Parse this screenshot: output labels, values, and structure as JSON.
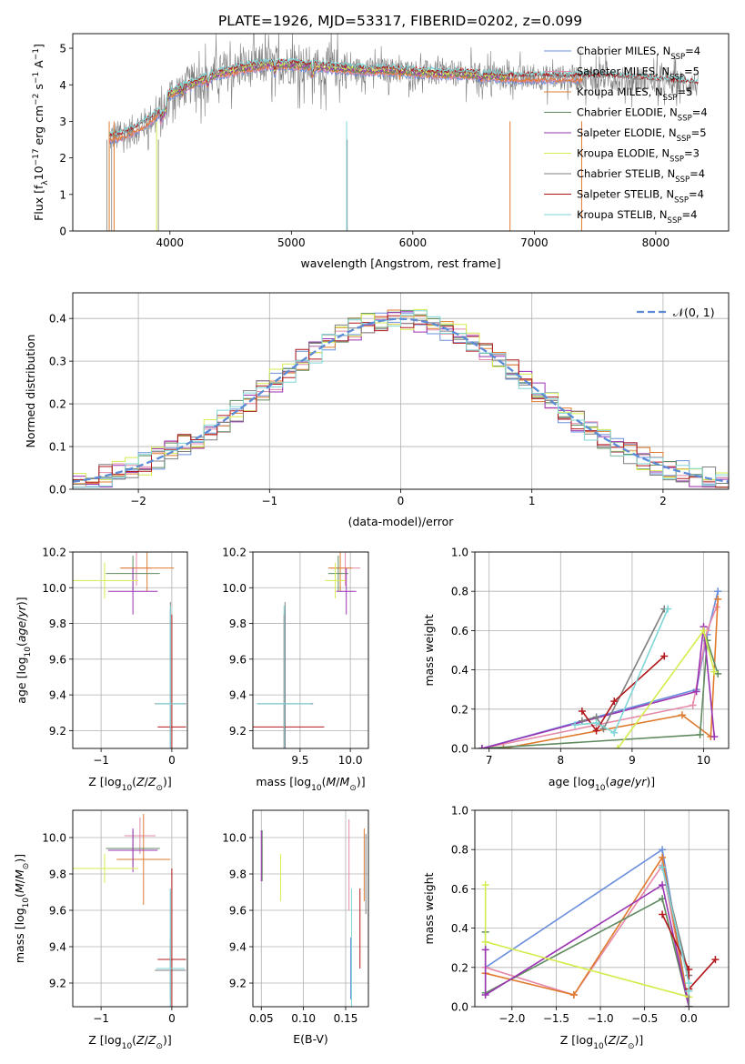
{
  "figure_title": "PLATE=1926, MJD=53317, FIBERID=0202, z=0.099",
  "colors": {
    "chabrier_miles": "#6a8fdc",
    "salpeter_miles": "#e58aa8",
    "kroupa_miles": "#e07b2e",
    "chabrier_elodie": "#5e8a5e",
    "salpeter_elodie": "#9b34b3",
    "kroupa_elodie": "#d5ec4e",
    "chabrier_stelib": "#7f7f7f",
    "salpeter_stelib": "#b2181b",
    "kroupa_stelib": "#7fd6d6",
    "normal_curve": "#5b8bd6"
  },
  "chart_data": [
    {
      "id": "spectrum",
      "type": "line",
      "xlabel": "wavelength [Angstrom, rest frame]",
      "ylabel": "Flux [fλ10⁻¹⁷ erg cm⁻² s⁻¹ A⁻¹]",
      "xlim": [
        3200,
        8600
      ],
      "ylim": [
        0,
        5.4
      ],
      "xticks": [
        4000,
        5000,
        6000,
        7000,
        8000
      ],
      "yticks": [
        0,
        1,
        2,
        3,
        4,
        5
      ],
      "legend_position": "right",
      "legend": [
        {
          "key": "chabrier_miles",
          "label": "Chabrier MILES, N_SSP=4"
        },
        {
          "key": "salpeter_miles",
          "label": "Salpeter MILES, N_SSP=5"
        },
        {
          "key": "kroupa_miles",
          "label": "Kroupa MILES, N_SSP=5"
        },
        {
          "key": "chabrier_elodie",
          "label": "Chabrier ELODIE, N_SSP=4"
        },
        {
          "key": "salpeter_elodie",
          "label": "Salpeter ELODIE, N_SSP=5"
        },
        {
          "key": "kroupa_elodie",
          "label": "Kroupa ELODIE, N_SSP=3"
        },
        {
          "key": "chabrier_stelib",
          "label": "Chabrier STELIB, N_SSP=4"
        },
        {
          "key": "salpeter_stelib",
          "label": "Salpeter STELIB, N_SSP=4"
        },
        {
          "key": "kroupa_stelib",
          "label": "Kroupa STELIB, N_SSP=4"
        }
      ],
      "continuum": [
        [
          3500,
          2.55
        ],
        [
          3600,
          2.6
        ],
        [
          3700,
          2.75
        ],
        [
          3800,
          2.95
        ],
        [
          3900,
          3.2
        ],
        [
          4000,
          3.75
        ],
        [
          4200,
          4.05
        ],
        [
          4400,
          4.3
        ],
        [
          4600,
          4.45
        ],
        [
          4800,
          4.55
        ],
        [
          5000,
          4.55
        ],
        [
          5200,
          4.5
        ],
        [
          5400,
          4.45
        ],
        [
          5600,
          4.4
        ],
        [
          5800,
          4.4
        ],
        [
          6000,
          4.35
        ],
        [
          6200,
          4.3
        ],
        [
          6400,
          4.3
        ],
        [
          6600,
          4.25
        ],
        [
          6800,
          4.2
        ],
        [
          7000,
          4.2
        ],
        [
          7200,
          4.2
        ],
        [
          7400,
          4.2
        ],
        [
          7600,
          4.2
        ],
        [
          7800,
          4.15
        ],
        [
          8000,
          4.1
        ],
        [
          8200,
          4.05
        ],
        [
          8350,
          4.0
        ]
      ],
      "model_ranges": {
        "chabrier_miles": [
          3500,
          7400
        ],
        "salpeter_miles": [
          3500,
          7400
        ],
        "kroupa_miles": [
          3500,
          7400
        ],
        "chabrier_elodie": [
          3900,
          6800
        ],
        "salpeter_elodie": [
          3900,
          6800
        ],
        "kroupa_elodie": [
          3900,
          6800
        ],
        "chabrier_stelib": [
          3500,
          8350
        ],
        "salpeter_stelib": [
          3500,
          8350
        ],
        "kroupa_stelib": [
          3500,
          8350
        ]
      }
    },
    {
      "id": "residual_histogram",
      "type": "bar",
      "xlabel": "(data-model)/error",
      "ylabel": "Normed distribution",
      "xlim": [
        -2.5,
        2.5
      ],
      "ylim": [
        0,
        0.46
      ],
      "xticks": [
        -2,
        -1,
        0,
        1,
        2
      ],
      "yticks": [
        0.0,
        0.1,
        0.2,
        0.3,
        0.4
      ],
      "grid": true,
      "legend_position": "top-right",
      "curve_label": "𝒩(0, 1)",
      "bin_width": 0.1
    },
    {
      "id": "age_vs_Z",
      "type": "scatter",
      "xlabel": "Z [log10(Z/Z⊙)]",
      "ylabel": "age  [log10(age/yr)]",
      "xlim": [
        -1.4,
        0.22
      ],
      "ylim": [
        9.1,
        10.2
      ],
      "xticks": [
        -1,
        0
      ],
      "yticks": [
        9.2,
        9.4,
        9.6,
        9.8,
        10.0,
        10.2
      ],
      "grid": true,
      "points": [
        {
          "key": "chabrier_miles",
          "x": -0.02,
          "y": 9.35,
          "xerr": 0.2,
          "yerr": 0.53
        },
        {
          "key": "salpeter_miles",
          "x": -0.5,
          "y": 10.11,
          "xerr": 0.22,
          "yerr": 0.1
        },
        {
          "key": "kroupa_miles",
          "x": -0.35,
          "y": 10.11,
          "xerr": 0.38,
          "yerr": 0.13
        },
        {
          "key": "chabrier_elodie",
          "x": -0.55,
          "y": 10.08,
          "xerr": 0.38,
          "yerr": 0.1
        },
        {
          "key": "salpeter_elodie",
          "x": -0.55,
          "y": 9.98,
          "xerr": 0.35,
          "yerr": 0.13
        },
        {
          "key": "kroupa_elodie",
          "x": -0.95,
          "y": 10.04,
          "xerr": 0.48,
          "yerr": 0.1
        },
        {
          "key": "chabrier_stelib",
          "x": -0.02,
          "y": 9.35,
          "xerr": 0.22,
          "yerr": 0.57
        },
        {
          "key": "salpeter_stelib",
          "x": 0.0,
          "y": 9.22,
          "xerr": 0.2,
          "yerr": 0.63
        },
        {
          "key": "kroupa_stelib",
          "x": -0.02,
          "y": 9.35,
          "xerr": 0.2,
          "yerr": 0.55
        }
      ]
    },
    {
      "id": "age_vs_mass",
      "type": "scatter",
      "xlabel": "mass [log10(M/M⊙)]",
      "ylabel": "",
      "xlim": [
        9.03,
        10.18
      ],
      "ylim": [
        9.1,
        10.2
      ],
      "xticks": [
        9.5,
        10.0
      ],
      "yticks": [
        9.2,
        9.4,
        9.6,
        9.8,
        10.0,
        10.2
      ],
      "grid": true,
      "points": [
        {
          "key": "chabrier_miles",
          "x": 9.35,
          "y": 9.35,
          "xerr": 0.28,
          "yerr": 0.53
        },
        {
          "key": "salpeter_miles",
          "x": 9.95,
          "y": 10.11,
          "xerr": 0.15,
          "yerr": 0.1
        },
        {
          "key": "kroupa_miles",
          "x": 9.9,
          "y": 10.11,
          "xerr": 0.12,
          "yerr": 0.13
        },
        {
          "key": "chabrier_elodie",
          "x": 9.88,
          "y": 10.08,
          "xerr": 0.1,
          "yerr": 0.1
        },
        {
          "key": "salpeter_elodie",
          "x": 9.96,
          "y": 9.98,
          "xerr": 0.1,
          "yerr": 0.13
        },
        {
          "key": "kroupa_elodie",
          "x": 9.85,
          "y": 10.04,
          "xerr": 0.1,
          "yerr": 0.1
        },
        {
          "key": "chabrier_stelib",
          "x": 9.35,
          "y": 9.35,
          "xerr": 0.27,
          "yerr": 0.57
        },
        {
          "key": "salpeter_stelib",
          "x": 9.34,
          "y": 9.22,
          "xerr": 0.4,
          "yerr": 0.63
        },
        {
          "key": "kroupa_stelib",
          "x": 9.34,
          "y": 9.35,
          "xerr": 0.27,
          "yerr": 0.55
        }
      ]
    },
    {
      "id": "weight_vs_age",
      "type": "line",
      "xlabel": "age  [log10(age/yr)]",
      "ylabel": "mass weight",
      "xlim": [
        6.8,
        10.35
      ],
      "ylim": [
        0,
        1
      ],
      "xticks": [
        7,
        8,
        9,
        10
      ],
      "yticks": [
        0.0,
        0.2,
        0.4,
        0.6,
        0.8,
        1.0
      ],
      "grid": true,
      "series": [
        {
          "key": "chabrier_miles",
          "x": [
            6.9,
            9.9,
            10.05,
            10.2
          ],
          "y": [
            0.0,
            0.3,
            0.58,
            0.8
          ]
        },
        {
          "key": "salpeter_miles",
          "x": [
            6.9,
            9.85,
            10.05,
            10.18
          ],
          "y": [
            0.0,
            0.22,
            0.6,
            0.72
          ]
        },
        {
          "key": "kroupa_miles",
          "x": [
            7.2,
            9.7,
            10.1,
            10.2
          ],
          "y": [
            0.0,
            0.17,
            0.06,
            0.76
          ]
        },
        {
          "key": "chabrier_elodie",
          "x": [
            6.9,
            9.95,
            10.05,
            10.2
          ],
          "y": [
            0.0,
            0.07,
            0.55,
            0.38
          ]
        },
        {
          "key": "salpeter_elodie",
          "x": [
            6.9,
            9.9,
            10.0,
            10.15
          ],
          "y": [
            0.0,
            0.29,
            0.62,
            0.06
          ]
        },
        {
          "key": "kroupa_elodie",
          "x": [
            8.8,
            10.0,
            10.15
          ],
          "y": [
            0.0,
            0.6,
            0.39
          ]
        },
        {
          "key": "chabrier_stelib",
          "x": [
            8.3,
            8.5,
            8.6,
            9.45
          ],
          "y": [
            0.14,
            0.16,
            0.1,
            0.71
          ]
        },
        {
          "key": "salpeter_stelib",
          "x": [
            8.3,
            8.5,
            8.75,
            9.45
          ],
          "y": [
            0.19,
            0.09,
            0.24,
            0.47
          ]
        },
        {
          "key": "kroupa_stelib",
          "x": [
            8.2,
            8.5,
            8.75,
            9.5
          ],
          "y": [
            0.12,
            0.13,
            0.08,
            0.71
          ]
        }
      ]
    },
    {
      "id": "mass_vs_Z",
      "type": "scatter",
      "xlabel": "Z [log10(Z/Z⊙)]",
      "ylabel": "mass [log10(M/M⊙)]",
      "xlim": [
        -1.4,
        0.22
      ],
      "ylim": [
        9.07,
        10.15
      ],
      "xticks": [
        -1,
        0
      ],
      "yticks": [
        9.2,
        9.4,
        9.6,
        9.8,
        10.0
      ],
      "grid": true,
      "points": [
        {
          "key": "chabrier_miles",
          "x": -0.02,
          "y": 9.28,
          "xerr": 0.2,
          "yerr": 0.17
        },
        {
          "key": "salpeter_miles",
          "x": -0.45,
          "y": 10.01,
          "xerr": 0.22,
          "yerr": 0.1
        },
        {
          "key": "kroupa_miles",
          "x": -0.4,
          "y": 9.88,
          "xerr": 0.38,
          "yerr": 0.25
        },
        {
          "key": "chabrier_elodie",
          "x": -0.55,
          "y": 9.94,
          "xerr": 0.38,
          "yerr": 0.1
        },
        {
          "key": "salpeter_elodie",
          "x": -0.55,
          "y": 9.93,
          "xerr": 0.35,
          "yerr": 0.12
        },
        {
          "key": "kroupa_elodie",
          "x": -0.95,
          "y": 9.83,
          "xerr": 0.48,
          "yerr": 0.08
        },
        {
          "key": "chabrier_stelib",
          "x": -0.02,
          "y": 9.27,
          "xerr": 0.22,
          "yerr": 0.45
        },
        {
          "key": "salpeter_stelib",
          "x": 0.0,
          "y": 9.33,
          "xerr": 0.2,
          "yerr": 0.5
        },
        {
          "key": "kroupa_stelib",
          "x": -0.02,
          "y": 9.28,
          "xerr": 0.2,
          "yerr": 0.44
        }
      ]
    },
    {
      "id": "mass_vs_ebv",
      "type": "scatter",
      "xlabel": "E(B-V)",
      "ylabel": "",
      "xlim": [
        0.04,
        0.177
      ],
      "ylim": [
        9.07,
        10.15
      ],
      "xticks": [
        0.05,
        0.1,
        0.15
      ],
      "yticks": [
        9.2,
        9.4,
        9.6,
        9.8,
        10.0
      ],
      "grid": true,
      "points": [
        {
          "key": "chabrier_miles",
          "x": 0.156,
          "y": 9.28,
          "xerr": 0.0,
          "yerr": 0.17
        },
        {
          "key": "salpeter_miles",
          "x": 0.154,
          "y": 9.85,
          "xerr": 0.0,
          "yerr": 0.25
        },
        {
          "key": "kroupa_miles",
          "x": 0.172,
          "y": 9.85,
          "xerr": 0.0,
          "yerr": 0.2
        },
        {
          "key": "chabrier_elodie",
          "x": 0.051,
          "y": 9.9,
          "xerr": 0.0,
          "yerr": 0.14
        },
        {
          "key": "salpeter_elodie",
          "x": 0.05,
          "y": 9.9,
          "xerr": 0.0,
          "yerr": 0.14
        },
        {
          "key": "kroupa_elodie",
          "x": 0.073,
          "y": 9.78,
          "xerr": 0.0,
          "yerr": 0.13
        },
        {
          "key": "chabrier_stelib",
          "x": 0.174,
          "y": 9.8,
          "xerr": 0.0,
          "yerr": 0.22
        },
        {
          "key": "salpeter_stelib",
          "x": 0.167,
          "y": 9.5,
          "xerr": 0.0,
          "yerr": 0.22
        },
        {
          "key": "kroupa_stelib",
          "x": 0.157,
          "y": 9.28,
          "xerr": 0.0,
          "yerr": 0.44
        }
      ]
    },
    {
      "id": "weight_vs_Z",
      "type": "line",
      "xlabel": "Z [log10(Z/Z⊙)]",
      "ylabel": "mass weight",
      "xlim": [
        -2.42,
        0.45
      ],
      "ylim": [
        0,
        1
      ],
      "xticks": [
        -2.0,
        -1.5,
        -1.0,
        -0.5,
        0.0
      ],
      "yticks": [
        0.0,
        0.2,
        0.4,
        0.6,
        0.8,
        1.0
      ],
      "grid": true,
      "series": [
        {
          "key": "chabrier_miles",
          "x": [
            -2.3,
            -0.3,
            0.0
          ],
          "y": [
            0.2,
            0.8,
            0.0
          ]
        },
        {
          "key": "salpeter_miles",
          "x": [
            -2.3,
            -1.3,
            -0.3,
            0.0
          ],
          "y": [
            0.2,
            0.06,
            0.72,
            0.0
          ]
        },
        {
          "key": "kroupa_miles",
          "x": [
            -2.3,
            -1.3,
            -0.3,
            0.0
          ],
          "y": [
            0.17,
            0.06,
            0.76,
            0.0
          ]
        },
        {
          "key": "chabrier_elodie",
          "x": [
            -2.3,
            -2.3,
            -0.3,
            0.0
          ],
          "y": [
            0.38,
            0.07,
            0.55,
            0.0
          ]
        },
        {
          "key": "salpeter_elodie",
          "x": [
            -2.3,
            -2.3,
            -0.3,
            0.0
          ],
          "y": [
            0.29,
            0.06,
            0.62,
            0.0
          ]
        },
        {
          "key": "kroupa_elodie",
          "x": [
            -2.3,
            -2.3,
            0.0
          ],
          "y": [
            0.62,
            0.33,
            0.05
          ]
        },
        {
          "key": "chabrier_stelib",
          "x": [
            -0.3,
            0.0,
            0.0
          ],
          "y": [
            0.71,
            0.16,
            0.0
          ]
        },
        {
          "key": "salpeter_stelib",
          "x": [
            -0.3,
            0.0,
            0.0,
            0.3
          ],
          "y": [
            0.47,
            0.19,
            0.09,
            0.24
          ]
        },
        {
          "key": "kroupa_stelib",
          "x": [
            -0.3,
            0.0,
            0.0
          ],
          "y": [
            0.71,
            0.12,
            0.08
          ]
        }
      ]
    }
  ]
}
